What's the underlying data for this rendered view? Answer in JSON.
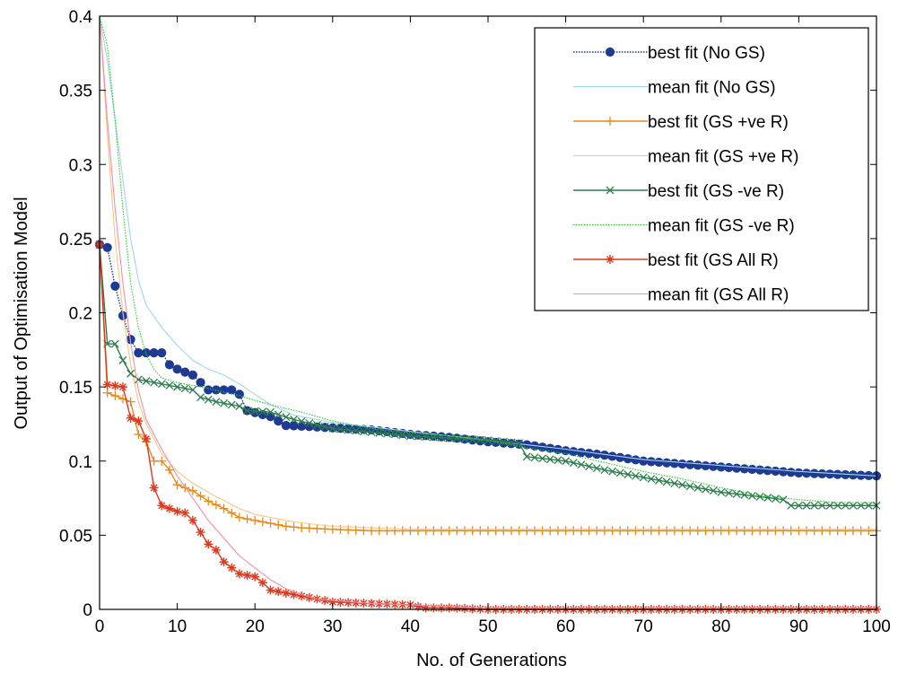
{
  "chart_data": {
    "type": "line",
    "xlabel": "No. of Generations",
    "ylabel": "Output of Optimisation Model",
    "xlim": [
      0,
      100
    ],
    "ylim": [
      0,
      0.4
    ],
    "xticks": [
      0,
      10,
      20,
      30,
      40,
      50,
      60,
      70,
      80,
      90,
      100
    ],
    "yticks": [
      0,
      0.05,
      0.1,
      0.15,
      0.2,
      0.25,
      0.3,
      0.35,
      0.4
    ],
    "xtick_labels": [
      "0",
      "10",
      "20",
      "30",
      "40",
      "50",
      "60",
      "70",
      "80",
      "90",
      "100"
    ],
    "ytick_labels": [
      "0",
      "0.05",
      "0.1",
      "0.15",
      "0.2",
      "0.25",
      "0.3",
      "0.35",
      "0.4"
    ],
    "grid": false,
    "legend_position": "top-right",
    "series": [
      {
        "name": "best fit (No GS)",
        "color": "#1f3a93",
        "line": "dotted",
        "marker": "circle",
        "marker_every": 1,
        "points": [
          [
            0,
            0.246
          ],
          [
            1,
            0.244
          ],
          [
            2,
            0.218
          ],
          [
            3,
            0.198
          ],
          [
            4,
            0.182
          ],
          [
            5,
            0.173
          ],
          [
            8,
            0.173
          ],
          [
            9,
            0.165
          ],
          [
            10,
            0.162
          ],
          [
            12,
            0.158
          ],
          [
            14,
            0.148
          ],
          [
            17,
            0.148
          ],
          [
            18,
            0.145
          ],
          [
            19,
            0.134
          ],
          [
            22,
            0.13
          ],
          [
            24,
            0.124
          ],
          [
            28,
            0.123
          ],
          [
            35,
            0.121
          ],
          [
            40,
            0.118
          ],
          [
            45,
            0.116
          ],
          [
            50,
            0.113
          ],
          [
            55,
            0.111
          ],
          [
            60,
            0.107
          ],
          [
            65,
            0.104
          ],
          [
            70,
            0.1
          ],
          [
            75,
            0.098
          ],
          [
            80,
            0.096
          ],
          [
            85,
            0.094
          ],
          [
            90,
            0.092
          ],
          [
            95,
            0.091
          ],
          [
            100,
            0.09
          ]
        ]
      },
      {
        "name": "mean fit (No GS)",
        "color": "#9fd7ea",
        "line": "solid",
        "points": [
          [
            0,
            0.4
          ],
          [
            1,
            0.37
          ],
          [
            2,
            0.33
          ],
          [
            3,
            0.29
          ],
          [
            4,
            0.25
          ],
          [
            5,
            0.222
          ],
          [
            6,
            0.205
          ],
          [
            8,
            0.19
          ],
          [
            10,
            0.178
          ],
          [
            12,
            0.168
          ],
          [
            14,
            0.162
          ],
          [
            16,
            0.158
          ],
          [
            18,
            0.152
          ],
          [
            20,
            0.145
          ],
          [
            22,
            0.138
          ],
          [
            25,
            0.131
          ],
          [
            30,
            0.126
          ],
          [
            40,
            0.12
          ],
          [
            50,
            0.114
          ],
          [
            60,
            0.108
          ],
          [
            70,
            0.101
          ],
          [
            80,
            0.097
          ],
          [
            90,
            0.093
          ],
          [
            100,
            0.09
          ]
        ]
      },
      {
        "name": "best fit (GS +ve R)",
        "color": "#e68a1a",
        "line": "solid",
        "marker": "plus",
        "marker_every": 1,
        "points": [
          [
            0,
            0.246
          ],
          [
            0.5,
            0.147
          ],
          [
            4,
            0.14
          ],
          [
            5,
            0.118
          ],
          [
            6,
            0.113
          ],
          [
            7,
            0.1
          ],
          [
            8,
            0.1
          ],
          [
            9,
            0.094
          ],
          [
            10,
            0.084
          ],
          [
            12,
            0.08
          ],
          [
            14,
            0.073
          ],
          [
            16,
            0.068
          ],
          [
            18,
            0.062
          ],
          [
            20,
            0.06
          ],
          [
            22,
            0.058
          ],
          [
            24,
            0.056
          ],
          [
            26,
            0.055
          ],
          [
            30,
            0.054
          ],
          [
            35,
            0.053
          ],
          [
            50,
            0.053
          ],
          [
            75,
            0.053
          ],
          [
            100,
            0.053
          ]
        ]
      },
      {
        "name": "mean fit (GS +ve R)",
        "color": "#f5c77e",
        "line": "solid",
        "points": [
          [
            0,
            0.4
          ],
          [
            1,
            0.32
          ],
          [
            2,
            0.25
          ],
          [
            3,
            0.2
          ],
          [
            4,
            0.165
          ],
          [
            5,
            0.14
          ],
          [
            6,
            0.125
          ],
          [
            8,
            0.105
          ],
          [
            10,
            0.093
          ],
          [
            12,
            0.085
          ],
          [
            15,
            0.076
          ],
          [
            18,
            0.068
          ],
          [
            20,
            0.064
          ],
          [
            25,
            0.059
          ],
          [
            30,
            0.056
          ],
          [
            40,
            0.054
          ],
          [
            60,
            0.054
          ],
          [
            100,
            0.054
          ]
        ]
      },
      {
        "name": "best fit (GS -ve R)",
        "color": "#2e7d4f",
        "line": "solid",
        "marker": "x",
        "marker_every": 1,
        "points": [
          [
            0,
            0.246
          ],
          [
            0.5,
            0.179
          ],
          [
            2,
            0.179
          ],
          [
            3,
            0.168
          ],
          [
            4,
            0.159
          ],
          [
            5,
            0.155
          ],
          [
            7,
            0.153
          ],
          [
            10,
            0.15
          ],
          [
            12,
            0.148
          ],
          [
            13,
            0.143
          ],
          [
            15,
            0.14
          ],
          [
            18,
            0.137
          ],
          [
            19,
            0.134
          ],
          [
            22,
            0.133
          ],
          [
            25,
            0.128
          ],
          [
            30,
            0.122
          ],
          [
            40,
            0.117
          ],
          [
            50,
            0.114
          ],
          [
            54,
            0.112
          ],
          [
            55,
            0.103
          ],
          [
            60,
            0.1
          ],
          [
            65,
            0.094
          ],
          [
            70,
            0.089
          ],
          [
            75,
            0.084
          ],
          [
            80,
            0.079
          ],
          [
            85,
            0.076
          ],
          [
            88,
            0.074
          ],
          [
            89,
            0.07
          ],
          [
            95,
            0.07
          ],
          [
            100,
            0.07
          ]
        ]
      },
      {
        "name": "mean fit (GS -ve R)",
        "color": "#22cc22",
        "line": "dotted",
        "points": [
          [
            0,
            0.4
          ],
          [
            1,
            0.38
          ],
          [
            2,
            0.33
          ],
          [
            3,
            0.27
          ],
          [
            4,
            0.22
          ],
          [
            5,
            0.19
          ],
          [
            6,
            0.172
          ],
          [
            7,
            0.162
          ],
          [
            8,
            0.156
          ],
          [
            10,
            0.153
          ],
          [
            14,
            0.149
          ],
          [
            18,
            0.144
          ],
          [
            22,
            0.138
          ],
          [
            26,
            0.133
          ],
          [
            30,
            0.127
          ],
          [
            35,
            0.122
          ],
          [
            40,
            0.119
          ],
          [
            45,
            0.117
          ],
          [
            50,
            0.114
          ],
          [
            55,
            0.109
          ],
          [
            60,
            0.105
          ],
          [
            65,
            0.099
          ],
          [
            70,
            0.093
          ],
          [
            75,
            0.088
          ],
          [
            80,
            0.082
          ],
          [
            85,
            0.077
          ],
          [
            90,
            0.074
          ],
          [
            95,
            0.072
          ],
          [
            100,
            0.072
          ]
        ]
      },
      {
        "name": "best fit (GS All R)",
        "color": "#dc3a1e",
        "line": "solid",
        "marker": "star",
        "marker_every": 1,
        "points": [
          [
            0,
            0.246
          ],
          [
            0.5,
            0.152
          ],
          [
            3,
            0.15
          ],
          [
            3.5,
            0.13
          ],
          [
            5,
            0.127
          ],
          [
            6,
            0.115
          ],
          [
            7,
            0.082
          ],
          [
            8,
            0.07
          ],
          [
            10,
            0.066
          ],
          [
            11,
            0.065
          ],
          [
            12,
            0.06
          ],
          [
            13,
            0.052
          ],
          [
            14,
            0.044
          ],
          [
            15,
            0.04
          ],
          [
            16,
            0.032
          ],
          [
            17,
            0.028
          ],
          [
            18,
            0.024
          ],
          [
            20,
            0.022
          ],
          [
            21,
            0.018
          ],
          [
            22,
            0.013
          ],
          [
            25,
            0.01
          ],
          [
            28,
            0.007
          ],
          [
            30,
            0.005
          ],
          [
            35,
            0.004
          ],
          [
            40,
            0.003
          ],
          [
            42,
            0.001
          ],
          [
            45,
            0.001
          ],
          [
            50,
            0.0
          ],
          [
            100,
            0.0
          ]
        ]
      },
      {
        "name": "mean fit (GS All R)",
        "color": "#ef8fb0",
        "line": "solid",
        "points": [
          [
            0,
            0.4
          ],
          [
            1,
            0.33
          ],
          [
            2,
            0.27
          ],
          [
            3,
            0.22
          ],
          [
            4,
            0.18
          ],
          [
            5,
            0.148
          ],
          [
            6,
            0.128
          ],
          [
            8,
            0.108
          ],
          [
            10,
            0.09
          ],
          [
            12,
            0.075
          ],
          [
            14,
            0.06
          ],
          [
            16,
            0.048
          ],
          [
            18,
            0.036
          ],
          [
            20,
            0.028
          ],
          [
            22,
            0.02
          ],
          [
            24,
            0.014
          ],
          [
            26,
            0.01
          ],
          [
            28,
            0.007
          ],
          [
            30,
            0.006
          ],
          [
            35,
            0.004
          ],
          [
            40,
            0.003
          ],
          [
            45,
            0.002
          ],
          [
            50,
            0.001
          ],
          [
            60,
            0.001
          ],
          [
            100,
            0.001
          ]
        ]
      }
    ]
  }
}
